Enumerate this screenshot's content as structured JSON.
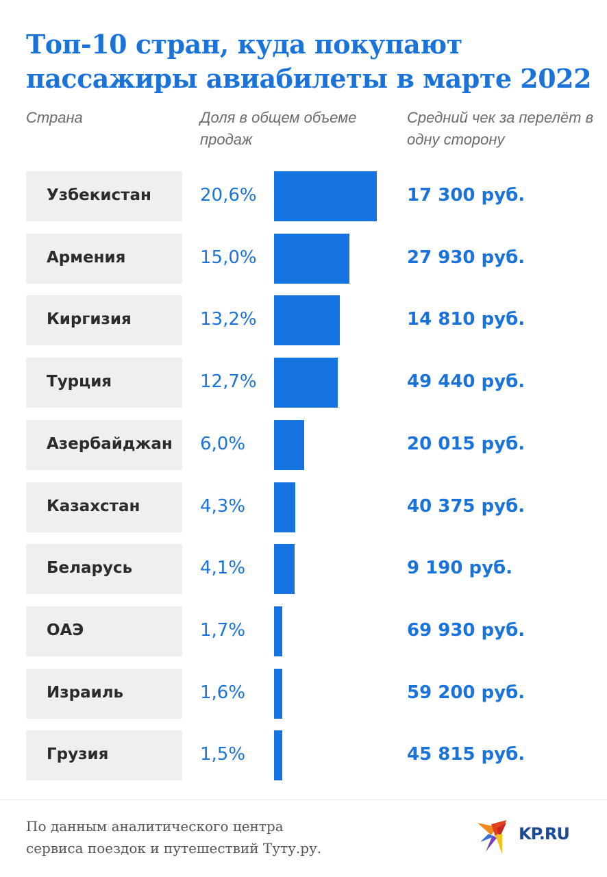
{
  "title": "Топ-10 стран, куда покупают пассажиры авиабилеты в марте 2022",
  "headers": {
    "country": "Страна",
    "share": "Доля в общем объеме продаж",
    "price": "Средний чек за перелёт в одну сторону"
  },
  "rows": [
    {
      "country": "Узбекистан",
      "share": "20,6%",
      "price": "17 300 руб."
    },
    {
      "country": "Армения",
      "share": "15,0%",
      "price": "27 930 руб."
    },
    {
      "country": "Киргизия",
      "share": "13,2%",
      "price": "14 810 руб."
    },
    {
      "country": "Турция",
      "share": "12,7%",
      "price": "49 440 руб."
    },
    {
      "country": "Азербайджан",
      "share": "6,0%",
      "price": "20 015 руб."
    },
    {
      "country": "Казахстан",
      "share": "4,3%",
      "price": "40 375 руб."
    },
    {
      "country": "Беларусь",
      "share": "4,1%",
      "price": "9 190 руб."
    },
    {
      "country": "ОАЭ",
      "share": "1,7%",
      "price": "69 930 руб."
    },
    {
      "country": "Израиль",
      "share": "1,6%",
      "price": "59 200 руб."
    },
    {
      "country": "Грузия",
      "share": "1,5%",
      "price": "45 815 руб."
    }
  ],
  "footer": {
    "source_line1": "По данным аналитического центра",
    "source_line2": "сервиса поездок и путешествий Туту.ру.",
    "logo_text": "KP.RU"
  },
  "colors": {
    "accent": "#1a73db",
    "bar": "#1473e0",
    "row_bg": "#efeff0",
    "logo": "#1c4a94"
  },
  "chart_data": {
    "type": "bar",
    "orientation": "horizontal",
    "title": "Топ-10 стран, куда покупают пассажиры авиабилеты в марте 2022",
    "categories": [
      "Узбекистан",
      "Армения",
      "Киргизия",
      "Турция",
      "Азербайджан",
      "Казахстан",
      "Беларусь",
      "ОАЭ",
      "Израиль",
      "Грузия"
    ],
    "series": [
      {
        "name": "Доля в общем объеме продаж, %",
        "values": [
          20.6,
          15.0,
          13.2,
          12.7,
          6.0,
          4.3,
          4.1,
          1.7,
          1.6,
          1.5
        ]
      },
      {
        "name": "Средний чек за перелёт в одну сторону, руб.",
        "values": [
          17300,
          27930,
          14810,
          49440,
          20015,
          40375,
          9190,
          69930,
          59200,
          45815
        ]
      }
    ],
    "xlabel": "",
    "ylabel": "",
    "grid": false,
    "source": "По данным аналитического центра сервиса поездок и путешествий Туту.ру."
  }
}
